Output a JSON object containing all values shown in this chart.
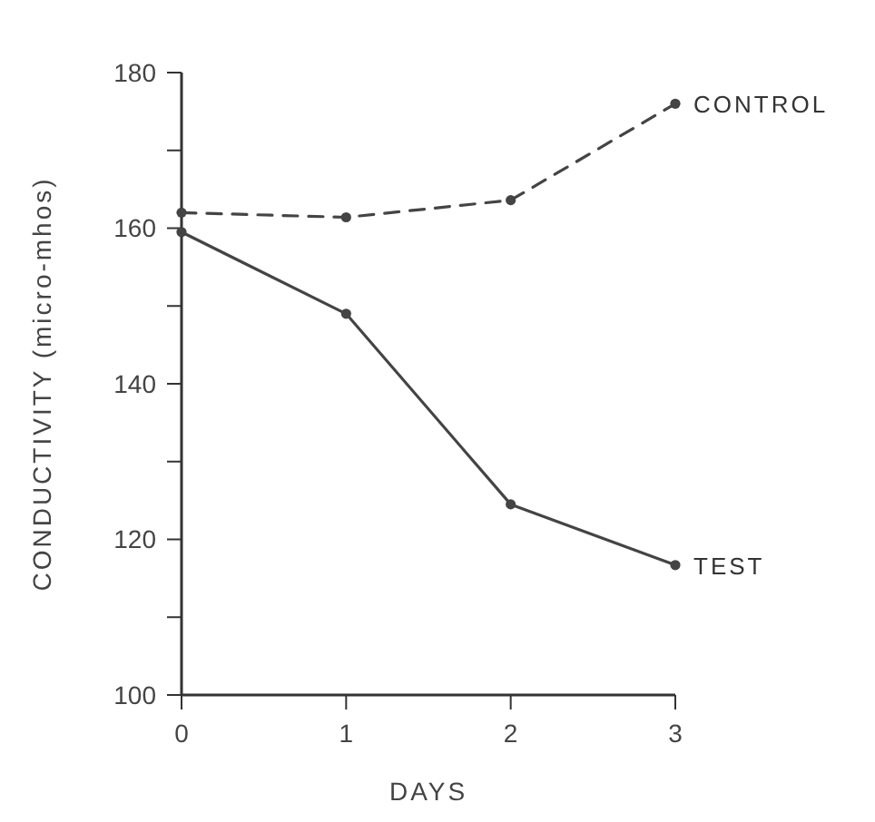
{
  "chart_data": {
    "type": "line",
    "xlabel": "DAYS",
    "ylabel": "CONDUCTIVITY (micro-mhos)",
    "x": [
      0,
      1,
      2,
      3
    ],
    "series": [
      {
        "name": "CONTROL",
        "color": "#444444",
        "values": [
          162,
          161.4,
          163.6,
          176
        ],
        "line_style": "dashed"
      },
      {
        "name": "TEST",
        "color": "#444444",
        "values": [
          159.5,
          149,
          124.5,
          116.7
        ],
        "line_style": "solid"
      }
    ],
    "xlim": [
      0,
      3
    ],
    "xticks": [
      0,
      1,
      2,
      3
    ],
    "ylim": [
      100,
      180
    ],
    "yticks": [
      100,
      {
        "value": 110,
        "label": null
      },
      120,
      {
        "value": 130,
        "label": null
      },
      140,
      {
        "value": 150,
        "label": null
      },
      160,
      {
        "value": 170,
        "label": null
      },
      180
    ],
    "grid": false,
    "marker": "circle"
  }
}
